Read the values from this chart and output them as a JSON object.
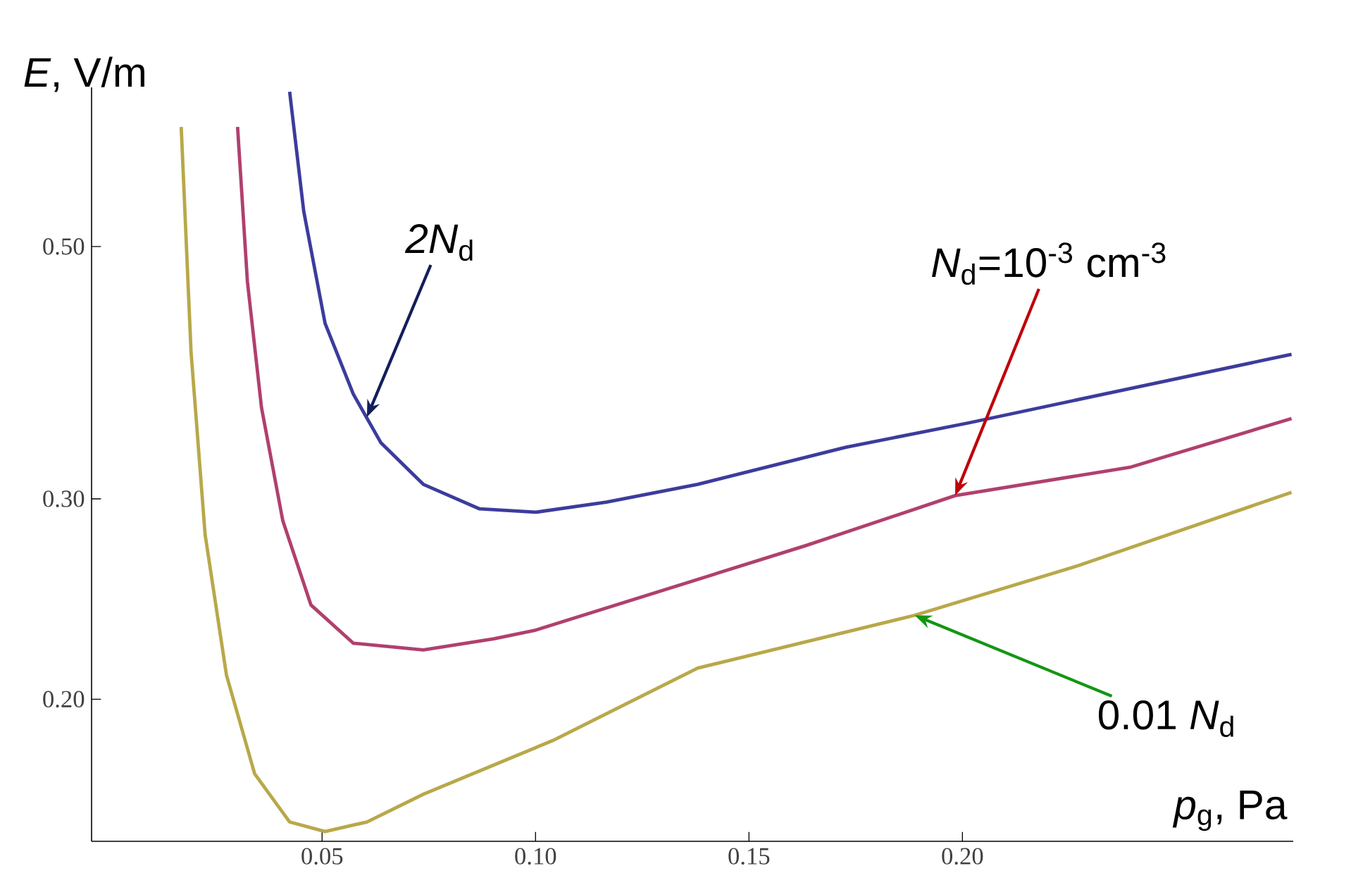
{
  "chart_data": {
    "type": "line",
    "xlabel": "*p*$_{g}$, Pa",
    "ylabel": "*E*, V/m",
    "log": "y",
    "grid": false,
    "marker": "none",
    "line_style": "solid",
    "xlim": [
      -0.004,
      0.2775
    ],
    "ylim": [
      0.15,
      0.69
    ],
    "xticks": [
      {
        "value": 0.05,
        "label": "0.05"
      },
      {
        "value": 0.1,
        "label": "0.10"
      },
      {
        "value": 0.15,
        "label": "0.15"
      },
      {
        "value": 0.2,
        "label": "0.20"
      }
    ],
    "yticks": [
      {
        "value": 0.2,
        "label": "0.20"
      },
      {
        "value": 0.3,
        "label": "0.30"
      },
      {
        "value": 0.5,
        "label": "0.50"
      }
    ],
    "series": [
      {
        "color": "#3c3c9c",
        "x": [
          0.0424,
          0.0457,
          0.0507,
          0.0573,
          0.0638,
          0.0737,
          0.0869,
          0.1,
          0.1166,
          0.138,
          0.1726,
          0.2016,
          0.2771
        ],
        "values": [
          0.684,
          0.537,
          0.428,
          0.371,
          0.336,
          0.309,
          0.294,
          0.292,
          0.298,
          0.309,
          0.333,
          0.35,
          0.402
        ]
      },
      {
        "color": "#b0406e",
        "x": [
          0.0302,
          0.0325,
          0.0358,
          0.0408,
          0.0474,
          0.0573,
          0.0737,
          0.0902,
          0.1,
          0.1634,
          0.1983,
          0.2395,
          0.2771
        ],
        "values": [
          0.637,
          0.466,
          0.361,
          0.287,
          0.242,
          0.224,
          0.221,
          0.226,
          0.23,
          0.273,
          0.302,
          0.32,
          0.353
        ]
      },
      {
        "color": "#b8a84a",
        "x": [
          0.017,
          0.0193,
          0.0226,
          0.0276,
          0.0342,
          0.0424,
          0.0507,
          0.0605,
          0.0737,
          0.1041,
          0.138,
          0.1888,
          0.227,
          0.2771
        ],
        "values": [
          0.637,
          0.404,
          0.279,
          0.21,
          0.172,
          0.156,
          0.153,
          0.156,
          0.165,
          0.184,
          0.213,
          0.237,
          0.262,
          0.304
        ]
      }
    ],
    "annotations": [
      {
        "text": "*2N*$_{d}$",
        "x": 0.0605,
        "y": 0.354
      },
      {
        "text": "*N*$_{d}$=10$^{-3}$ cm$^{-3}$",
        "x": 0.1983,
        "y": 0.302
      },
      {
        "text": "0.01 *N*$_{d}$",
        "x": 0.1888,
        "y": 0.237
      }
    ]
  }
}
